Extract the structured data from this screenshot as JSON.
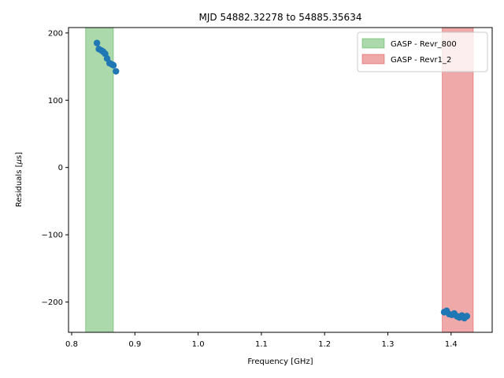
{
  "chart_data": {
    "type": "scatter",
    "title": "MJD 54882.32278 to 54885.35634",
    "xlabel": "Frequency [GHz]",
    "ylabel_prefix": "Residuals [",
    "ylabel_mu": "μ",
    "ylabel_suffix": "s]",
    "xlim": [
      0.795,
      1.465
    ],
    "ylim": [
      -245,
      208
    ],
    "xticks": [
      0.8,
      0.9,
      1.0,
      1.1,
      1.2,
      1.3,
      1.4
    ],
    "xtick_labels": [
      "0.8",
      "0.9",
      "1.0",
      "1.1",
      "1.2",
      "1.3",
      "1.4"
    ],
    "yticks": [
      -200,
      -100,
      0,
      100,
      200
    ],
    "ytick_labels": [
      "−200",
      "−100",
      "0",
      "100",
      "200"
    ],
    "grid": false,
    "legend_position": "top-right",
    "spans": [
      {
        "label": "GASP - Revr_800",
        "x0": 0.822,
        "x1": 0.866,
        "color": "#2ca02c"
      },
      {
        "label": "GASP - Revr1_2",
        "x0": 1.386,
        "x1": 1.435,
        "color": "#d62728"
      }
    ],
    "series": [
      {
        "color": "#1f77b4",
        "points": [
          {
            "x": 0.84,
            "y": 185
          },
          {
            "x": 0.843,
            "y": 176
          },
          {
            "x": 0.847,
            "y": 174
          },
          {
            "x": 0.85,
            "y": 172
          },
          {
            "x": 0.853,
            "y": 169
          },
          {
            "x": 0.856,
            "y": 162
          },
          {
            "x": 0.86,
            "y": 155
          },
          {
            "x": 0.864,
            "y": 153
          },
          {
            "x": 0.866,
            "y": 152
          },
          {
            "x": 0.87,
            "y": 143
          },
          {
            "x": 1.389,
            "y": -215
          },
          {
            "x": 1.393,
            "y": -213
          },
          {
            "x": 1.397,
            "y": -218
          },
          {
            "x": 1.401,
            "y": -219
          },
          {
            "x": 1.405,
            "y": -217
          },
          {
            "x": 1.409,
            "y": -221
          },
          {
            "x": 1.413,
            "y": -223
          },
          {
            "x": 1.417,
            "y": -220
          },
          {
            "x": 1.421,
            "y": -224
          },
          {
            "x": 1.425,
            "y": -221
          }
        ]
      }
    ]
  }
}
